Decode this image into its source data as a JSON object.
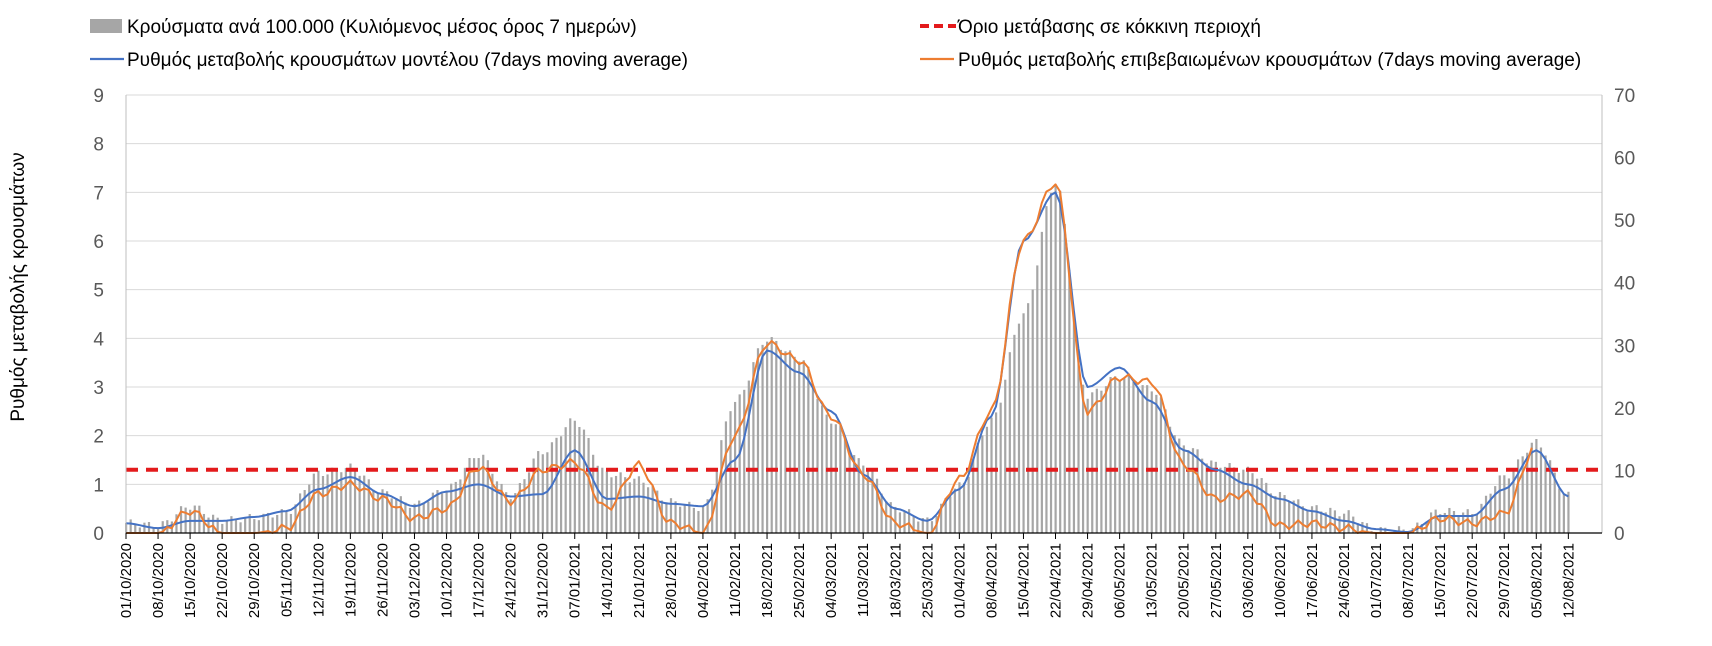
{
  "chart_data": {
    "type": "bar+line",
    "legend": [
      {
        "key": "bars",
        "label": "Κρούσματα ανά 100.000 (Κυλιόμενος μέσος όρος 7 ημερών)",
        "color": "#a6a6a6",
        "style": "bar"
      },
      {
        "key": "threshold",
        "label": "Όριο μετάβασης σε κόκκινη περιοχή",
        "color": "#e31a1c",
        "style": "dashed"
      },
      {
        "key": "model",
        "label": "Ρυθμός μεταβολής κρουσμάτων μοντέλου (7days moving average)",
        "color": "#4472c4",
        "style": "line"
      },
      {
        "key": "confirmed",
        "label": "Ρυθμός μεταβολής επιβεβαιωμένων κρουσμάτων (7days moving average)",
        "color": "#ed7d31",
        "style": "line"
      }
    ],
    "ylabel": "Ρυθμός μεταβολής κρουσμάτων",
    "y_left": {
      "min": 0,
      "max": 9,
      "ticks": [
        "0",
        "1",
        "2",
        "3",
        "4",
        "5",
        "6",
        "7",
        "8",
        "9"
      ]
    },
    "y_right": {
      "min": 0,
      "max": 70,
      "ticks": [
        "0",
        "10",
        "20",
        "30",
        "40",
        "50",
        "60",
        "70"
      ]
    },
    "x_tick_labels": [
      "01/10/2020",
      "08/10/2020",
      "15/10/2020",
      "22/10/2020",
      "29/10/2020",
      "05/11/2020",
      "12/11/2020",
      "19/11/2020",
      "26/11/2020",
      "03/12/2020",
      "10/12/2020",
      "17/12/2020",
      "24/12/2020",
      "31/12/2020",
      "07/01/2021",
      "14/01/2021",
      "21/01/2021",
      "28/01/2021",
      "04/02/2021",
      "11/02/2021",
      "18/02/2021",
      "25/02/2021",
      "04/03/2021",
      "11/03/2021",
      "18/03/2021",
      "25/03/2021",
      "01/04/2021",
      "08/04/2021",
      "15/04/2021",
      "22/04/2021",
      "29/04/2021",
      "06/05/2021",
      "13/05/2021",
      "20/05/2021",
      "27/05/2021",
      "03/06/2021",
      "10/06/2021",
      "17/06/2021",
      "24/06/2021",
      "01/07/2021",
      "08/07/2021",
      "15/07/2021",
      "22/07/2021",
      "29/07/2021",
      "05/08/2021",
      "12/08/2021"
    ],
    "threshold_value": 1.3,
    "bars_by_week": [
      1.6,
      1.2,
      4.3,
      2.0,
      2.5,
      3.3,
      9.5,
      10.5,
      6.5,
      4.5,
      7.0,
      12.5,
      6.0,
      13.0,
      18.0,
      9.5,
      8.5,
      5.0,
      4.0,
      21.0,
      31.0,
      28.0,
      18.0,
      11.0,
      4.0,
      2.0,
      7.5,
      18.0,
      35.0,
      56.0,
      22.0,
      25.0,
      23.0,
      14.0,
      11.0,
      10.0,
      6.0,
      4.0,
      3.2,
      0.5,
      0.5,
      3.5,
      3.2,
      9.0,
      14.5,
      6.0
    ],
    "model_by_week": [
      0.2,
      0.1,
      0.25,
      0.25,
      0.33,
      0.45,
      0.9,
      1.15,
      0.8,
      0.55,
      0.85,
      1.0,
      0.75,
      0.8,
      1.7,
      0.7,
      0.75,
      0.6,
      0.55,
      1.5,
      3.75,
      3.3,
      2.5,
      1.2,
      0.5,
      0.25,
      0.9,
      2.4,
      6.0,
      7.0,
      3.0,
      3.4,
      2.7,
      1.7,
      1.3,
      1.0,
      0.7,
      0.45,
      0.25,
      0.08,
      0.02,
      0.35,
      0.35,
      0.9,
      1.7,
      0.75
    ],
    "confirmed_by_week": [
      0.0,
      0.0,
      0.45,
      0.0,
      0.0,
      0.1,
      0.8,
      1.0,
      0.7,
      0.3,
      0.5,
      1.35,
      0.65,
      1.3,
      1.45,
      0.5,
      1.4,
      0.2,
      0.0,
      2.0,
      3.9,
      3.55,
      2.4,
      1.2,
      0.2,
      0.0,
      1.1,
      2.5,
      6.0,
      7.2,
      2.5,
      3.2,
      3.1,
      1.4,
      0.7,
      0.8,
      0.15,
      0.2,
      0.1,
      0.0,
      0.0,
      0.3,
      0.2,
      0.4,
      1.8,
      null
    ]
  }
}
